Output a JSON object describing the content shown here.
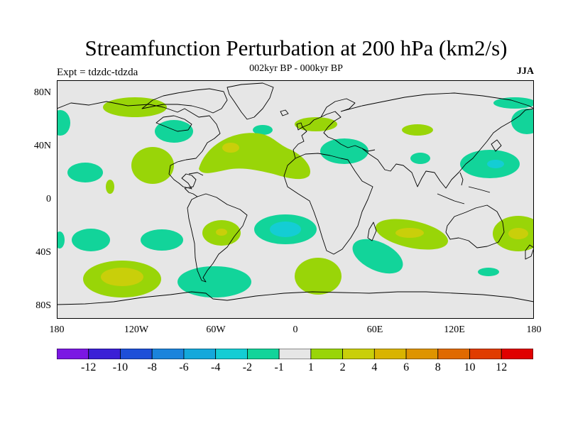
{
  "title": "Streamfunction Perturbation at 200 hPa (km2/s)",
  "subtitle": "002kyr BP - 000kyr BP",
  "left_label": "Expt = tdzdc-tdzda",
  "right_label": "JJA",
  "lat_labels": [
    "80N",
    "40N",
    "0",
    "40S",
    "80S"
  ],
  "lon_labels": [
    "180",
    "120W",
    "60W",
    "0",
    "60E",
    "120E",
    "180"
  ],
  "colorbar": {
    "colors": [
      "#7b17e3",
      "#3b1fd6",
      "#1d4fd8",
      "#1b84dc",
      "#14a8db",
      "#14cdd4",
      "#12d49a",
      "#e6e6e6",
      "#99d508",
      "#c9cf0a",
      "#d9b400",
      "#de9400",
      "#e06a00",
      "#e03c00",
      "#e00000"
    ],
    "labels": [
      "-12",
      "-10",
      "-8",
      "-6",
      "-4",
      "-2",
      "-1",
      "1",
      "2",
      "4",
      "6",
      "8",
      "10",
      "12"
    ]
  },
  "colors": {
    "land_outline": "#000000",
    "neutral": "#e6e6e6",
    "neg_light": "#12d49a",
    "neg_mid": "#14cdd4",
    "pos_light": "#99d508",
    "pos_mid": "#c9cf0a"
  }
}
